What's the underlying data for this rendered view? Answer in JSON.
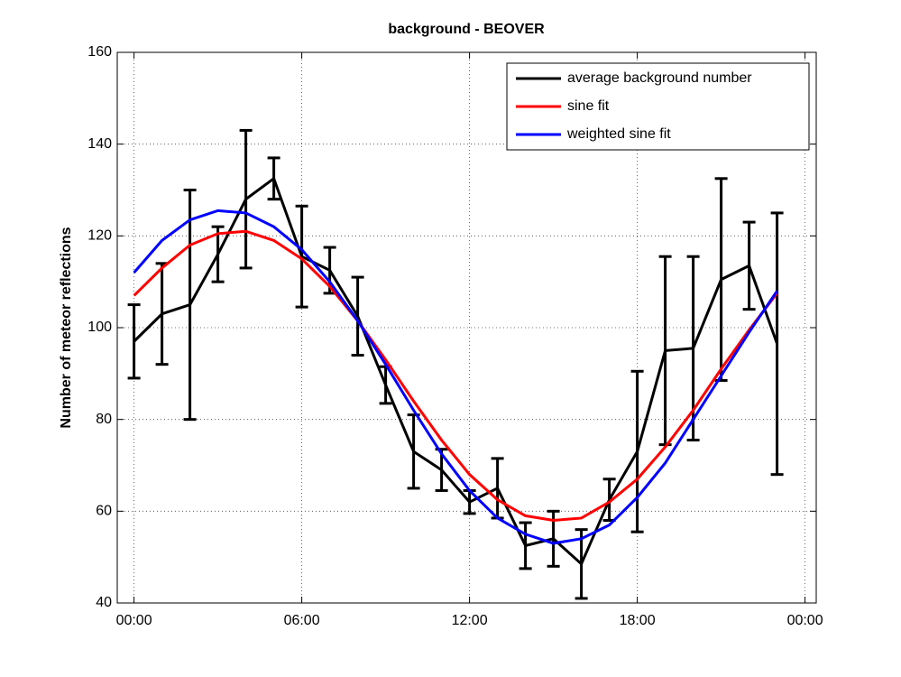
{
  "chart_data": {
    "type": "line",
    "title": "background - BEOVER",
    "ylabel": "Number of meteor reflections",
    "x": [
      0,
      1,
      2,
      3,
      4,
      5,
      6,
      7,
      8,
      9,
      10,
      11,
      12,
      13,
      14,
      15,
      16,
      17,
      18,
      19,
      20,
      21,
      22,
      23
    ],
    "series": [
      {
        "name": "average background number",
        "color": "#000000",
        "values": [
          97,
          103,
          105,
          116,
          128,
          132.5,
          115.5,
          112.5,
          102.5,
          87.5,
          73,
          69,
          62,
          65,
          52.5,
          54,
          48.5,
          62.5,
          73,
          95,
          95.5,
          110.5,
          113.5,
          96.5
        ],
        "errors": [
          8,
          11,
          25,
          6,
          15,
          4.5,
          11,
          5,
          8.5,
          4,
          8,
          4.5,
          2.5,
          6.5,
          5,
          6,
          7.5,
          4.5,
          17.5,
          20.5,
          20,
          22,
          9.5,
          28.5
        ]
      },
      {
        "name": "sine fit",
        "color": "#ff0000",
        "values": [
          107,
          113,
          118,
          120.5,
          121,
          119,
          115,
          109,
          101.5,
          93,
          84,
          75.5,
          68,
          62.5,
          59,
          58,
          58.5,
          62,
          67,
          74,
          82,
          91,
          99.5,
          107.5
        ]
      },
      {
        "name": "weighted sine fit",
        "color": "#0000ff",
        "values": [
          112,
          119,
          123.5,
          125.5,
          125,
          122,
          117,
          110,
          101.5,
          92,
          82,
          72.5,
          64.5,
          58.5,
          55,
          53,
          54,
          57,
          63,
          70.5,
          80,
          89.5,
          99,
          108
        ]
      }
    ],
    "xlim": [
      -0.6,
      24.4
    ],
    "xticks": [
      {
        "value": 0,
        "label": "00:00"
      },
      {
        "value": 6,
        "label": "06:00"
      },
      {
        "value": 12,
        "label": "12:00"
      },
      {
        "value": 18,
        "label": "18:00"
      },
      {
        "value": 24,
        "label": "00:00"
      }
    ],
    "ylim": [
      40,
      160
    ],
    "yticks": [
      40,
      60,
      80,
      100,
      120,
      140,
      160
    ],
    "grid": true,
    "legend": "upper right"
  }
}
